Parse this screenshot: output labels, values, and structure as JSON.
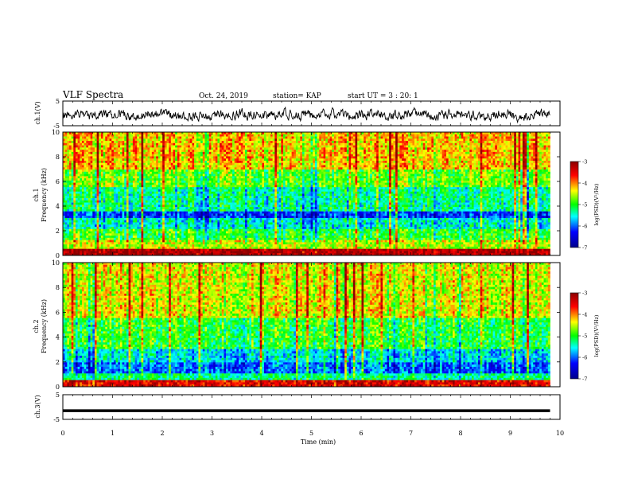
{
  "header": {
    "title": "VLF Spectra",
    "date": "Oct. 24, 2019",
    "station": "station= KAP",
    "start": "start UT =  3 : 20: 1"
  },
  "colors": {
    "frame": "#000000",
    "waveform": "#000000",
    "colormap": [
      "#00008b",
      "#0000ff",
      "#00ffff",
      "#00ff00",
      "#ffff00",
      "#ff0000",
      "#8b0000"
    ]
  },
  "chart_data": [
    {
      "type": "line",
      "panel": "ch1-waveform",
      "ylabel": "ch.1(V)",
      "ylim": [
        -5,
        5
      ],
      "yticks": [
        "5",
        "-5"
      ],
      "xlim": [
        0,
        10
      ],
      "x_visible_end": 9.8,
      "amplitude_note": "noisy signal, mostly between -3 and +2 V"
    },
    {
      "type": "heatmap",
      "panel": "ch1-spectrogram",
      "ylabel": "ch.1\nFrequency (kHz)",
      "ylim": [
        0,
        10
      ],
      "yticks": [
        "0",
        "2",
        "4",
        "6",
        "8",
        "10"
      ],
      "xlim": [
        0,
        10
      ],
      "x_visible_end": 9.8,
      "bands": [
        {
          "f": [
            0,
            0.6
          ],
          "level": -3.2
        },
        {
          "f": [
            0.6,
            1.2
          ],
          "level": -4.5
        },
        {
          "f": [
            1.2,
            2.2
          ],
          "level": -5.0
        },
        {
          "f": [
            2.2,
            3.0
          ],
          "level": -5.5
        },
        {
          "f": [
            3.0,
            3.5
          ],
          "level": -6.2
        },
        {
          "f": [
            3.5,
            5.5
          ],
          "level": -5.3
        },
        {
          "f": [
            5.5,
            7.0
          ],
          "level": -4.8
        },
        {
          "f": [
            7.0,
            10.0
          ],
          "level": -4.2
        }
      ],
      "colorbar": {
        "label": "log(PSD)(V²/Hz)",
        "ticks": [
          "-3",
          "-4",
          "-5",
          "-6",
          "-7"
        ],
        "range": [
          -7,
          -3
        ]
      }
    },
    {
      "type": "heatmap",
      "panel": "ch2-spectrogram",
      "ylabel": "ch.2\nFrequency (kHz)",
      "ylim": [
        0,
        10
      ],
      "yticks": [
        "0",
        "2",
        "4",
        "6",
        "8",
        "10"
      ],
      "xlim": [
        0,
        10
      ],
      "x_visible_end": 9.8,
      "bands": [
        {
          "f": [
            0,
            0.5
          ],
          "level": -3.5
        },
        {
          "f": [
            0.5,
            1.0
          ],
          "level": -5.3
        },
        {
          "f": [
            1.0,
            2.0
          ],
          "level": -6.0
        },
        {
          "f": [
            2.0,
            3.0
          ],
          "level": -5.6
        },
        {
          "f": [
            3.0,
            5.5
          ],
          "level": -5.0
        },
        {
          "f": [
            5.5,
            10.0
          ],
          "level": -4.4
        }
      ],
      "colorbar": {
        "label": "log(PSD)(V²/Hz)",
        "ticks": [
          "-3",
          "-4",
          "-5",
          "-6",
          "-7"
        ],
        "range": [
          -7,
          -3
        ]
      }
    },
    {
      "type": "line",
      "panel": "ch3-waveform",
      "ylabel": "ch.3(V)",
      "ylim": [
        -5,
        5
      ],
      "yticks": [
        "5",
        "-5"
      ],
      "xlim": [
        0,
        10
      ],
      "x_visible_end": 9.8,
      "constant_value": -1.5
    }
  ],
  "xaxis": {
    "label": "Time (min)",
    "ticks": [
      "0",
      "1",
      "2",
      "3",
      "4",
      "5",
      "6",
      "7",
      "8",
      "9",
      "10"
    ]
  }
}
